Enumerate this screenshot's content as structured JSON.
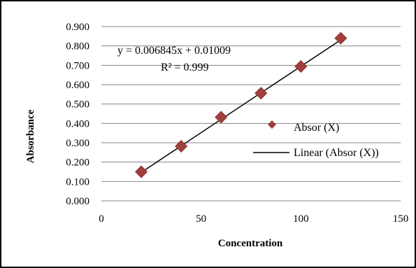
{
  "chart_data": {
    "type": "scatter",
    "xlabel": "Concentration",
    "ylabel": "Absorbance",
    "xlim": [
      0,
      150
    ],
    "ylim": [
      0,
      0.9
    ],
    "x_ticks": [
      "0",
      "50",
      "100",
      "150"
    ],
    "y_ticks": [
      "0.000",
      "0.100",
      "0.200",
      "0.300",
      "0.400",
      "0.500",
      "0.600",
      "0.700",
      "0.800",
      "0.900"
    ],
    "grid": "horizontal",
    "legend_position": "right",
    "series": [
      {
        "name": "Absor (X)",
        "marker": "diamond",
        "color": "#A0403A",
        "x": [
          20,
          40,
          60,
          80,
          100,
          120
        ],
        "y": [
          0.15,
          0.282,
          0.432,
          0.556,
          0.694,
          0.84
        ]
      }
    ],
    "trendline": {
      "name": "Linear (Absor (X))",
      "color": "#000000",
      "slope": 0.006845,
      "intercept": 0.01009,
      "x_range": [
        20,
        120
      ]
    },
    "annotations": {
      "equation": "y = 0.006845x + 0.01009",
      "r_squared": "R² = 0.999"
    }
  }
}
